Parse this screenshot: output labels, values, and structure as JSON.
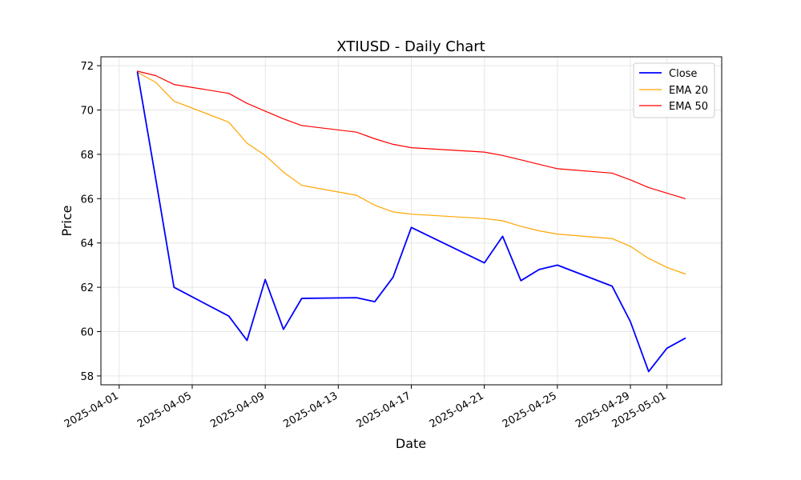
{
  "chart_data": {
    "type": "line",
    "title": "XTIUSD - Daily Chart",
    "xlabel": "Date",
    "ylabel": "Price",
    "xlim": [
      "2025-03-31",
      "2025-05-04"
    ],
    "ylim": [
      57.6,
      72.4
    ],
    "grid": true,
    "legend_position": "top-right",
    "x_ticks": [
      "2025-04-01",
      "2025-04-05",
      "2025-04-09",
      "2025-04-13",
      "2025-04-17",
      "2025-04-21",
      "2025-04-25",
      "2025-04-29",
      "2025-05-01"
    ],
    "y_ticks": [
      58,
      60,
      62,
      64,
      66,
      68,
      70,
      72
    ],
    "dates": [
      "2025-04-02",
      "2025-04-03",
      "2025-04-04",
      "2025-04-07",
      "2025-04-08",
      "2025-04-09",
      "2025-04-10",
      "2025-04-11",
      "2025-04-14",
      "2025-04-15",
      "2025-04-16",
      "2025-04-17",
      "2025-04-21",
      "2025-04-22",
      "2025-04-23",
      "2025-04-24",
      "2025-04-25",
      "2025-04-28",
      "2025-04-29",
      "2025-04-30",
      "2025-05-01",
      "2025-05-02"
    ],
    "series": [
      {
        "name": "Close",
        "color": "#0000ff",
        "width": 1.8,
        "values": [
          71.7,
          66.9,
          62.0,
          60.7,
          59.6,
          62.35,
          60.1,
          61.5,
          61.53,
          61.35,
          62.45,
          64.7,
          63.1,
          64.3,
          62.3,
          62.8,
          63.0,
          62.05,
          60.45,
          58.2,
          59.25,
          59.7
        ]
      },
      {
        "name": "EMA 20",
        "color": "#ffa500",
        "width": 1.2,
        "values": [
          71.7,
          71.25,
          70.4,
          69.45,
          68.5,
          67.95,
          67.2,
          66.6,
          66.15,
          65.7,
          65.4,
          65.3,
          65.1,
          65.0,
          64.75,
          64.55,
          64.4,
          64.2,
          63.85,
          63.3,
          62.9,
          62.6
        ]
      },
      {
        "name": "EMA 50",
        "color": "#ff0000",
        "width": 1.2,
        "values": [
          71.75,
          71.55,
          71.15,
          70.75,
          70.3,
          69.95,
          69.6,
          69.3,
          69.0,
          68.7,
          68.45,
          68.3,
          68.1,
          67.95,
          67.75,
          67.55,
          67.35,
          67.15,
          66.85,
          66.5,
          66.25,
          66.0
        ]
      }
    ],
    "grid_color": "#e6e6e6"
  }
}
